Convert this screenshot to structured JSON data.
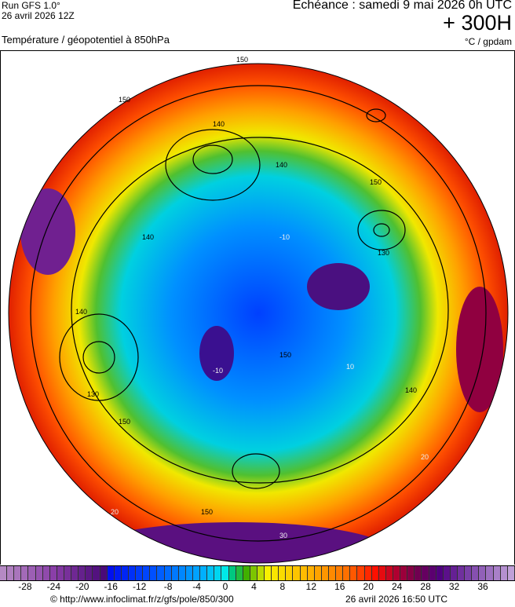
{
  "header": {
    "run": "Run GFS 1.0°",
    "run_date": "26 avril 2026 12Z",
    "parameter": "Température / géopotentiel à 850hPa",
    "echeance": "Echéance : samedi 9 mai 2026 0h UTC",
    "lead": "+ 300H",
    "units": "°C / gpdam"
  },
  "map": {
    "projection": "polar stereographic (north pole)",
    "contour_labels": [
      "150",
      "140",
      "130",
      "150",
      "140",
      "140",
      "130",
      "150",
      "140",
      "150",
      "150",
      "140",
      "150"
    ],
    "temp_labels": [
      "-10",
      "10",
      "20",
      "30",
      "20",
      "-10"
    ]
  },
  "colorbar": {
    "min": -31,
    "max": 40,
    "ticks": [
      "-28",
      "-24",
      "-20",
      "-16",
      "-12",
      "-8",
      "-4",
      "0",
      "4",
      "8",
      "12",
      "16",
      "20",
      "24",
      "28",
      "32",
      "36"
    ],
    "stops": [
      [
        -31,
        "#b58ac4"
      ],
      [
        -24,
        "#8a3fa8"
      ],
      [
        -17,
        "#4a0a78"
      ],
      [
        -16,
        "#0010f0"
      ],
      [
        -10,
        "#0050ff"
      ],
      [
        -3,
        "#00b0ff"
      ],
      [
        0,
        "#00e8e8"
      ],
      [
        1,
        "#00c880"
      ],
      [
        3,
        "#40b000"
      ],
      [
        6,
        "#f8f000"
      ],
      [
        12,
        "#ffb000"
      ],
      [
        17,
        "#ff7000"
      ],
      [
        21,
        "#ff1000"
      ],
      [
        24,
        "#b00030"
      ],
      [
        27,
        "#700050"
      ],
      [
        30,
        "#500080"
      ],
      [
        34,
        "#7a40a8"
      ],
      [
        40,
        "#c0a0d8"
      ]
    ]
  },
  "footer": {
    "url": "© http://www.infoclimat.fr/z/gfs/pole/850/300",
    "generated": "26 avril 2026 16:50 UTC"
  }
}
